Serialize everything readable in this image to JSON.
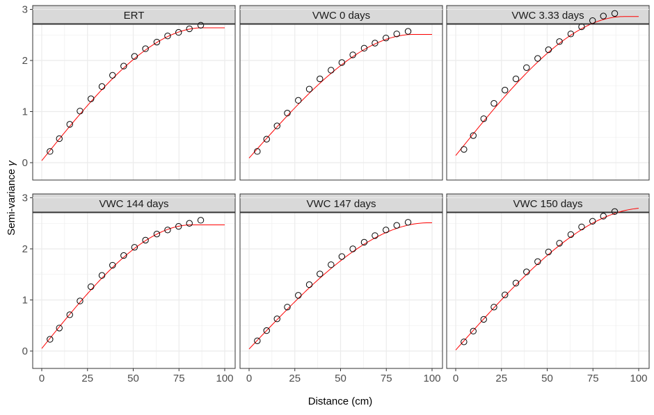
{
  "chart_data": {
    "type": "scatter",
    "xlabel": "Distance (cm)",
    "ylabel": "Semi-variance",
    "ylabel_symbol": "γ",
    "xlim": [
      0,
      100
    ],
    "ylim": [
      0,
      3
    ],
    "x_ticks": [
      "0",
      "25",
      "50",
      "75",
      "100"
    ],
    "y_ticks": [
      "0",
      "1",
      "2",
      "3"
    ],
    "grid": true,
    "colors": {
      "points": "#000000",
      "fit_line": "#ff0000",
      "strip_bg": "#d9d9d9",
      "grid": "#ebebeb"
    },
    "panels": [
      {
        "title": "ERT",
        "x": [
          4.5,
          9.6,
          15.3,
          20.9,
          26.9,
          32.9,
          38.7,
          44.8,
          50.7,
          56.7,
          62.9,
          68.8,
          74.8,
          80.7,
          86.9
        ],
        "y": [
          0.22,
          0.47,
          0.75,
          1.01,
          1.25,
          1.49,
          1.71,
          1.89,
          2.08,
          2.23,
          2.36,
          2.48,
          2.55,
          2.62,
          2.69
        ],
        "fit": {
          "nugget": 0.04,
          "sill": 2.64,
          "range": 88
        }
      },
      {
        "title": "VWC 0 days",
        "x": [
          4.5,
          9.6,
          15.3,
          20.9,
          26.9,
          32.9,
          38.7,
          44.8,
          50.7,
          56.7,
          62.9,
          68.8,
          74.8,
          80.7,
          86.9
        ],
        "y": [
          0.22,
          0.46,
          0.72,
          0.97,
          1.22,
          1.44,
          1.64,
          1.81,
          1.96,
          2.11,
          2.24,
          2.34,
          2.44,
          2.52,
          2.57
        ],
        "fit": {
          "nugget": 0.09,
          "sill": 2.51,
          "range": 90
        }
      },
      {
        "title": "VWC 3.33 days",
        "x": [
          4.5,
          9.6,
          15.3,
          20.9,
          26.9,
          32.9,
          38.7,
          44.8,
          50.7,
          56.7,
          62.9,
          68.8,
          74.8,
          80.7,
          86.9
        ],
        "y": [
          0.26,
          0.53,
          0.86,
          1.16,
          1.42,
          1.64,
          1.86,
          2.04,
          2.21,
          2.37,
          2.52,
          2.66,
          2.78,
          2.87,
          2.92
        ],
        "fit": {
          "nugget": 0.14,
          "sill": 2.86,
          "range": 92
        }
      },
      {
        "title": "VWC 144 days",
        "x": [
          4.5,
          9.6,
          15.3,
          20.9,
          26.9,
          32.9,
          38.7,
          44.8,
          50.7,
          56.7,
          62.9,
          68.8,
          74.8,
          80.7,
          86.9
        ],
        "y": [
          0.23,
          0.45,
          0.71,
          0.98,
          1.26,
          1.48,
          1.68,
          1.87,
          2.03,
          2.17,
          2.29,
          2.37,
          2.44,
          2.5,
          2.56
        ],
        "fit": {
          "nugget": 0.05,
          "sill": 2.47,
          "range": 82
        }
      },
      {
        "title": "VWC 147 days",
        "x": [
          4.5,
          9.6,
          15.3,
          20.9,
          26.9,
          32.9,
          38.7,
          44.8,
          50.7,
          56.7,
          62.9,
          68.8,
          74.8,
          80.7,
          86.9
        ],
        "y": [
          0.2,
          0.4,
          0.63,
          0.86,
          1.09,
          1.3,
          1.51,
          1.69,
          1.85,
          2.0,
          2.13,
          2.26,
          2.37,
          2.46,
          2.52
        ],
        "fit": {
          "nugget": 0.04,
          "sill": 2.51,
          "range": 98
        }
      },
      {
        "title": "VWC 150 days",
        "x": [
          4.5,
          9.6,
          15.3,
          20.9,
          26.9,
          32.9,
          38.7,
          44.8,
          50.7,
          56.7,
          62.9,
          68.8,
          74.8,
          80.7,
          86.9
        ],
        "y": [
          0.18,
          0.39,
          0.62,
          0.86,
          1.1,
          1.33,
          1.55,
          1.75,
          1.94,
          2.11,
          2.28,
          2.43,
          2.54,
          2.64,
          2.73
        ],
        "fit": {
          "nugget": 0.02,
          "sill": 2.8,
          "range": 104
        }
      }
    ]
  }
}
